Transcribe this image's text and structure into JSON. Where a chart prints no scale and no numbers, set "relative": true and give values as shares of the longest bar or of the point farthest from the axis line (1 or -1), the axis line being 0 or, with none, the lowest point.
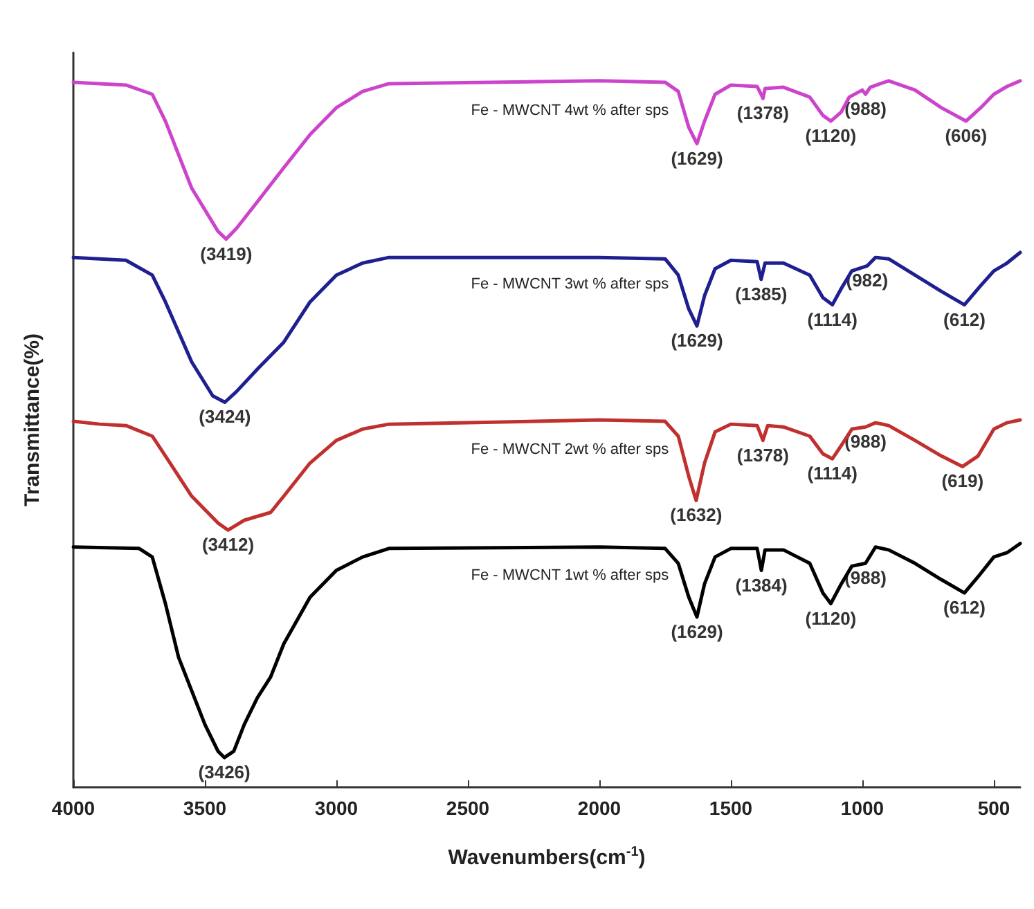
{
  "chart_data": {
    "type": "line",
    "xlabel": "Wavenumbers(cm$^{-1}$)",
    "ylabel": "Transmittance(%)",
    "relative": true,
    "xlim": [
      4000,
      400
    ],
    "xticks": [
      4000,
      3500,
      3000,
      2500,
      2000,
      1500,
      1000,
      500
    ],
    "grid": false,
    "legend": false,
    "marker": "none",
    "line_style": "solid",
    "series": [
      {
        "name": "Fe - MWCNT 4wt % after sps",
        "color": "#cc44cc",
        "x": [
          4000,
          3800,
          3700,
          3650,
          3550,
          3450,
          3419,
          3380,
          3300,
          3200,
          3100,
          3000,
          2900,
          2800,
          2000,
          1750,
          1700,
          1660,
          1629,
          1600,
          1560,
          1500,
          1400,
          1385,
          1378,
          1370,
          1300,
          1200,
          1150,
          1120,
          1080,
          1050,
          1000,
          988,
          970,
          900,
          800,
          700,
          606,
          550,
          500,
          450,
          400
        ],
        "values": [
          0.998,
          0.994,
          0.981,
          0.943,
          0.848,
          0.787,
          0.776,
          0.791,
          0.829,
          0.877,
          0.924,
          0.962,
          0.985,
          0.996,
          1.0,
          0.998,
          0.985,
          0.934,
          0.911,
          0.943,
          0.981,
          0.994,
          0.992,
          0.981,
          0.975,
          0.989,
          0.991,
          0.977,
          0.951,
          0.943,
          0.956,
          0.977,
          0.987,
          0.981,
          0.991,
          1.0,
          0.987,
          0.962,
          0.943,
          0.962,
          0.981,
          0.992,
          1.0
        ]
      },
      {
        "name": "Fe - MWCNT 3wt % after sps",
        "color": "#1f1f8f",
        "x": [
          4000,
          3800,
          3700,
          3650,
          3550,
          3470,
          3424,
          3380,
          3300,
          3200,
          3100,
          3000,
          2900,
          2800,
          2000,
          1750,
          1700,
          1660,
          1629,
          1600,
          1560,
          1500,
          1400,
          1385,
          1370,
          1300,
          1200,
          1150,
          1114,
          1080,
          1040,
          982,
          950,
          900,
          800,
          700,
          612,
          550,
          500,
          450,
          400
        ],
        "values": [
          0.75,
          0.746,
          0.725,
          0.687,
          0.602,
          0.554,
          0.545,
          0.56,
          0.592,
          0.63,
          0.687,
          0.725,
          0.742,
          0.75,
          0.75,
          0.748,
          0.725,
          0.677,
          0.653,
          0.696,
          0.734,
          0.746,
          0.744,
          0.719,
          0.742,
          0.742,
          0.725,
          0.693,
          0.683,
          0.706,
          0.731,
          0.738,
          0.75,
          0.748,
          0.725,
          0.702,
          0.683,
          0.71,
          0.731,
          0.742,
          0.757
        ]
      },
      {
        "name": "Fe - MWCNT 2wt % after sps",
        "color": "#c0302e",
        "x": [
          4000,
          3900,
          3800,
          3700,
          3650,
          3550,
          3450,
          3412,
          3350,
          3250,
          3200,
          3100,
          3000,
          2900,
          2800,
          2500,
          2000,
          1750,
          1700,
          1660,
          1632,
          1600,
          1560,
          1500,
          1400,
          1378,
          1360,
          1300,
          1200,
          1150,
          1114,
          1080,
          1040,
          988,
          950,
          900,
          800,
          700,
          619,
          560,
          500,
          450,
          400
        ],
        "values": [
          0.518,
          0.514,
          0.512,
          0.497,
          0.469,
          0.412,
          0.374,
          0.364,
          0.378,
          0.389,
          0.412,
          0.459,
          0.491,
          0.507,
          0.514,
          0.516,
          0.52,
          0.518,
          0.497,
          0.44,
          0.406,
          0.459,
          0.503,
          0.514,
          0.512,
          0.491,
          0.512,
          0.51,
          0.497,
          0.472,
          0.465,
          0.484,
          0.507,
          0.51,
          0.516,
          0.512,
          0.491,
          0.469,
          0.454,
          0.469,
          0.507,
          0.516,
          0.52
        ]
      },
      {
        "name": "Fe - MWCNT 1wt % after sps",
        "color": "#000000",
        "x": [
          4000,
          3750,
          3700,
          3650,
          3600,
          3500,
          3450,
          3426,
          3390,
          3350,
          3300,
          3250,
          3200,
          3100,
          3000,
          2900,
          2800,
          2000,
          1750,
          1700,
          1660,
          1629,
          1600,
          1560,
          1500,
          1400,
          1384,
          1370,
          1300,
          1200,
          1150,
          1120,
          1080,
          1040,
          988,
          950,
          900,
          800,
          700,
          612,
          560,
          500,
          450,
          400
        ],
        "values": [
          0.34,
          0.338,
          0.326,
          0.26,
          0.184,
          0.089,
          0.051,
          0.042,
          0.051,
          0.089,
          0.127,
          0.156,
          0.203,
          0.269,
          0.307,
          0.326,
          0.338,
          0.34,
          0.338,
          0.317,
          0.269,
          0.241,
          0.288,
          0.326,
          0.338,
          0.338,
          0.307,
          0.336,
          0.336,
          0.317,
          0.275,
          0.26,
          0.288,
          0.313,
          0.317,
          0.34,
          0.336,
          0.317,
          0.294,
          0.275,
          0.298,
          0.326,
          0.332,
          0.345
        ]
      }
    ],
    "annotations": [
      {
        "text": "(3419)",
        "x": 3419,
        "y": 0.776
      },
      {
        "text": "(1629)",
        "x": 1629,
        "y": 0.911
      },
      {
        "text": "(1378)",
        "x": 1378,
        "y": 0.975
      },
      {
        "text": "(1120)",
        "x": 1120,
        "y": 0.943
      },
      {
        "text": "(988)",
        "x": 988,
        "y": 0.981
      },
      {
        "text": "(606)",
        "x": 606,
        "y": 0.943
      },
      {
        "text": "(3424)",
        "x": 3424,
        "y": 0.545
      },
      {
        "text": "(1629)",
        "x": 1629,
        "y": 0.653
      },
      {
        "text": "(1385)",
        "x": 1385,
        "y": 0.719
      },
      {
        "text": "(1114)",
        "x": 1114,
        "y": 0.683
      },
      {
        "text": "(982)",
        "x": 982,
        "y": 0.738
      },
      {
        "text": "(612)",
        "x": 612,
        "y": 0.683
      },
      {
        "text": "(3412)",
        "x": 3412,
        "y": 0.364
      },
      {
        "text": "(1632)",
        "x": 1632,
        "y": 0.406
      },
      {
        "text": "(1378)",
        "x": 1378,
        "y": 0.491
      },
      {
        "text": "(1114)",
        "x": 1114,
        "y": 0.465
      },
      {
        "text": "(988)",
        "x": 988,
        "y": 0.51
      },
      {
        "text": "(619)",
        "x": 619,
        "y": 0.454
      },
      {
        "text": "(3426)",
        "x": 3426,
        "y": 0.042
      },
      {
        "text": "(1629)",
        "x": 1629,
        "y": 0.241
      },
      {
        "text": "(1384)",
        "x": 1384,
        "y": 0.307
      },
      {
        "text": "(1120)",
        "x": 1120,
        "y": 0.26
      },
      {
        "text": "(988)",
        "x": 988,
        "y": 0.317
      },
      {
        "text": "(612)",
        "x": 612,
        "y": 0.275
      }
    ]
  }
}
